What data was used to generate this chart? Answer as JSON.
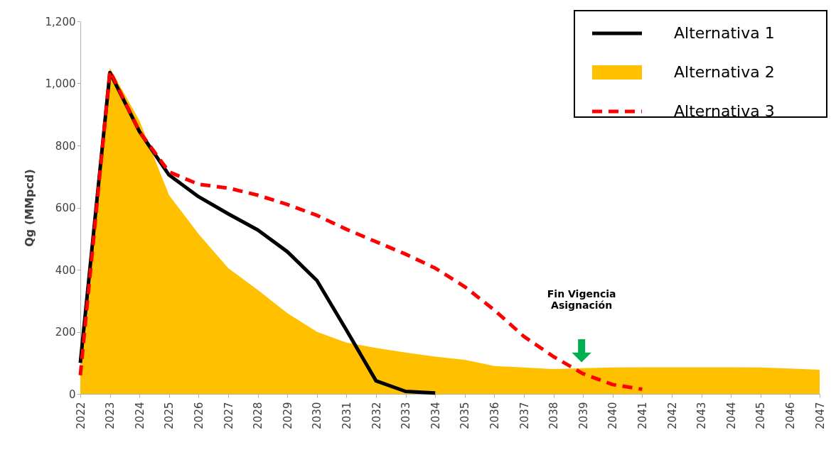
{
  "chart_data": {
    "type": "line",
    "ylabel": "Qg (MMpcd)",
    "x": [
      2022,
      2023,
      2024,
      2025,
      2026,
      2027,
      2028,
      2029,
      2030,
      2031,
      2032,
      2033,
      2034,
      2035,
      2036,
      2037,
      2038,
      2039,
      2040,
      2041,
      2042,
      2043,
      2044,
      2045,
      2046,
      2047
    ],
    "series": [
      {
        "name": "Alternativa 1",
        "color": "#000000",
        "line_style": "solid",
        "x": [
          2022,
          2023,
          2024,
          2025,
          2026,
          2027,
          2028,
          2029,
          2030,
          2031,
          2032,
          2033,
          2034
        ],
        "values": [
          100,
          1035,
          845,
          705,
          635,
          580,
          528,
          458,
          365,
          205,
          42,
          8,
          3
        ]
      },
      {
        "name": "Alternativa 2",
        "type": "area",
        "color": "#ffc000",
        "values": [
          60,
          1050,
          880,
          640,
          515,
          405,
          335,
          260,
          200,
          165,
          148,
          133,
          120,
          110,
          90,
          85,
          80,
          83,
          85,
          86,
          86,
          86,
          86,
          85,
          82,
          78
        ]
      },
      {
        "name": "Alternativa 3",
        "color": "#ff0000",
        "line_style": "dashed",
        "x": [
          2022,
          2023,
          2024,
          2025,
          2026,
          2027,
          2028,
          2029,
          2030,
          2031,
          2032,
          2033,
          2034,
          2035,
          2036,
          2037,
          2038,
          2039,
          2040,
          2041
        ],
        "values": [
          60,
          1040,
          845,
          715,
          675,
          663,
          640,
          610,
          575,
          530,
          490,
          450,
          405,
          345,
          270,
          185,
          120,
          65,
          30,
          15
        ]
      }
    ],
    "xlim": [
      2022,
      2047
    ],
    "xticks": [
      2022,
      2023,
      2024,
      2025,
      2026,
      2027,
      2028,
      2029,
      2030,
      2031,
      2032,
      2033,
      2034,
      2035,
      2036,
      2037,
      2038,
      2039,
      2040,
      2041,
      2042,
      2043,
      2044,
      2045,
      2046,
      2047
    ],
    "ylim": [
      0,
      1200
    ],
    "yticks": [
      0,
      200,
      400,
      600,
      800,
      {
        "value": 1000,
        "label": "1,000"
      },
      {
        "value": 1200,
        "label": "1,200"
      }
    ],
    "annotations": [
      "Fin Vigencia\nAsignación"
    ],
    "legend": "top right",
    "grid": false
  }
}
